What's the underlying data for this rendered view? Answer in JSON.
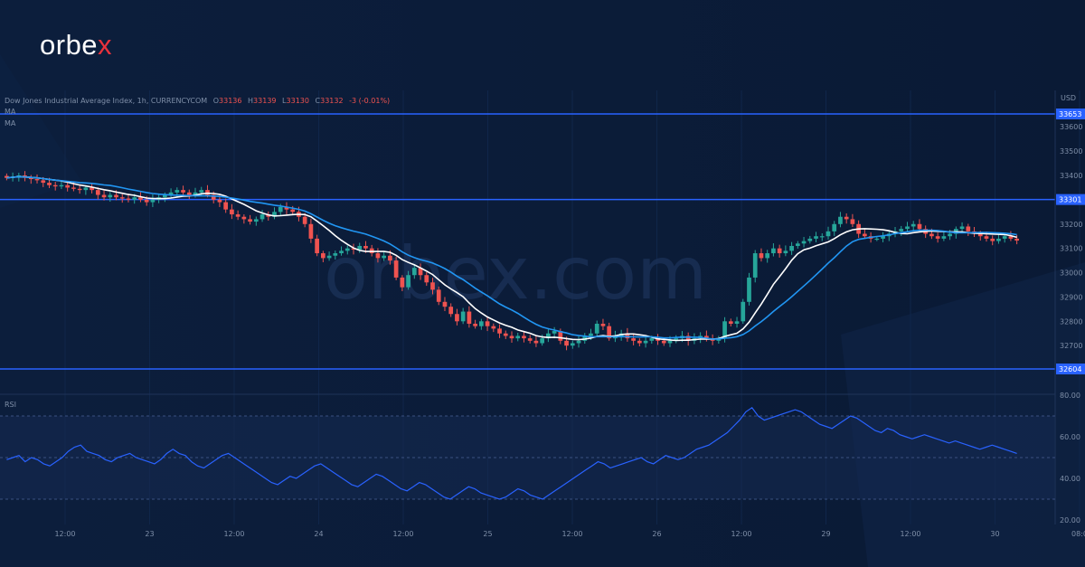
{
  "brand": {
    "name_left": "orbe",
    "name_right": "x"
  },
  "watermark": "orbex.com",
  "chart_header": {
    "symbol": "Dow Jones Industrial Average Index, 1h, CURRENCYCOM",
    "o_label": "O",
    "o_value": "33136",
    "h_label": "H",
    "h_value": "33139",
    "l_label": "L",
    "l_value": "33130",
    "c_label": "C",
    "c_value": "33132",
    "change": "-3 (-0.01%)",
    "ma1": "MA",
    "ma2": "MA"
  },
  "currency": "USD",
  "rsi_label": "RSI",
  "colors": {
    "bull": "#26a69a",
    "bear": "#ef5350",
    "level": "#2962ff",
    "ma_fast": "#ffffff",
    "ma_slow": "#2196f3",
    "rsi": "#2962ff"
  },
  "chart_data": {
    "type": "candlestick",
    "price_axis": {
      "ticks": [
        "33600",
        "33500",
        "33400",
        "33300",
        "33200",
        "33100",
        "33000",
        "32900",
        "32800",
        "32700"
      ],
      "ylim": [
        32620,
        33700
      ]
    },
    "levels": [
      {
        "value": 33653,
        "label": "33653"
      },
      {
        "value": 33301,
        "label": "33301"
      },
      {
        "value": 32604,
        "label": "32604"
      }
    ],
    "time_axis": {
      "labels": [
        "12:00",
        "23",
        "12:00",
        "24",
        "12:00",
        "25",
        "12:00",
        "26",
        "12:00",
        "29",
        "12:00",
        "30",
        "08:0"
      ]
    },
    "price_path": [
      33390,
      33395,
      33400,
      33390,
      33385,
      33380,
      33370,
      33360,
      33355,
      33360,
      33350,
      33345,
      33340,
      33350,
      33340,
      33320,
      33310,
      33320,
      33310,
      33305,
      33300,
      33310,
      33300,
      33290,
      33300,
      33310,
      33320,
      33330,
      33340,
      33330,
      33320,
      33330,
      33340,
      33320,
      33300,
      33290,
      33260,
      33240,
      33230,
      33220,
      33210,
      33220,
      33240,
      33230,
      33250,
      33270,
      33260,
      33250,
      33230,
      33200,
      33140,
      33080,
      33060,
      33070,
      33080,
      33090,
      33100,
      33095,
      33110,
      33100,
      33080,
      33060,
      33070,
      33050,
      32980,
      32940,
      32990,
      33020,
      32990,
      32960,
      32930,
      32880,
      32860,
      32830,
      32800,
      32840,
      32790,
      32780,
      32800,
      32780,
      32770,
      32750,
      32740,
      32730,
      32740,
      32730,
      32720,
      32710,
      32730,
      32750,
      32760,
      32720,
      32700,
      32710,
      32720,
      32740,
      32750,
      32790,
      32780,
      32730,
      32740,
      32750,
      32730,
      32720,
      32710,
      32720,
      32730,
      32720,
      32710,
      32720,
      32730,
      32740,
      32720,
      32730,
      32740,
      32730,
      32720,
      32730,
      32800,
      32790,
      32800,
      32880,
      32980,
      33080,
      33060,
      33080,
      33100,
      33080,
      33090,
      33110,
      33120,
      33130,
      33140,
      33150,
      33150,
      33170,
      33200,
      33230,
      33220,
      33200,
      33160,
      33150,
      33140,
      33140,
      33150,
      33160,
      33170,
      33180,
      33190,
      33200,
      33180,
      33160,
      33150,
      33140,
      33150,
      33160,
      33180,
      33190,
      33170,
      33160,
      33150,
      33140,
      33130,
      33140,
      33150,
      33140,
      33132
    ],
    "rsi": {
      "ticks": [
        "80.00",
        "60.00",
        "40.00",
        "20.00"
      ],
      "ylim": [
        20,
        80
      ],
      "band": [
        30,
        70
      ],
      "midline": 50,
      "values": [
        49,
        50,
        51,
        48,
        50,
        49,
        47,
        46,
        48,
        50,
        53,
        55,
        56,
        53,
        52,
        51,
        49,
        48,
        50,
        51,
        52,
        50,
        49,
        48,
        47,
        49,
        52,
        54,
        52,
        51,
        48,
        46,
        45,
        47,
        49,
        51,
        52,
        50,
        48,
        46,
        44,
        42,
        40,
        38,
        37,
        39,
        41,
        40,
        42,
        44,
        46,
        47,
        45,
        43,
        41,
        39,
        37,
        36,
        38,
        40,
        42,
        41,
        39,
        37,
        35,
        34,
        36,
        38,
        37,
        35,
        33,
        31,
        30,
        32,
        34,
        36,
        35,
        33,
        32,
        31,
        30,
        31,
        33,
        35,
        34,
        32,
        31,
        30,
        32,
        34,
        36,
        38,
        40,
        42,
        44,
        46,
        48,
        47,
        45,
        46,
        47,
        48,
        49,
        50,
        48,
        47,
        49,
        51,
        50,
        49,
        50,
        52,
        54,
        55,
        56,
        58,
        60,
        62,
        65,
        68,
        72,
        74,
        70,
        68,
        69,
        70,
        71,
        72,
        73,
        72,
        70,
        68,
        66,
        65,
        64,
        66,
        68,
        70,
        69,
        67,
        65,
        63,
        62,
        64,
        63,
        61,
        60,
        59,
        60,
        61,
        60,
        59,
        58,
        57,
        58,
        57,
        56,
        55,
        54,
        55,
        56,
        55,
        54,
        53,
        52
      ]
    }
  }
}
